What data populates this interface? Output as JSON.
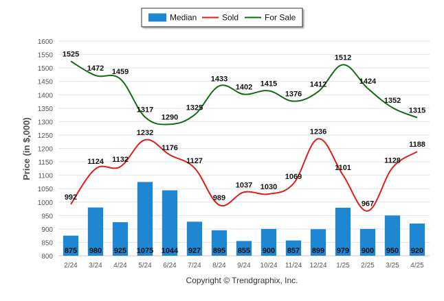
{
  "chart_data": {
    "type": "bar",
    "categories": [
      "2/24",
      "3/24",
      "4/24",
      "5/24",
      "6/24",
      "7/24",
      "8/24",
      "9/24",
      "10/24",
      "11/24",
      "12/24",
      "1/25",
      "2/25",
      "3/25",
      "4/25"
    ],
    "series": [
      {
        "name": "Median",
        "type": "bar",
        "color": "#1f87d2",
        "values": [
          875,
          980,
          925,
          1075,
          1044,
          927,
          895,
          855,
          900,
          857,
          899,
          979,
          900,
          950,
          920
        ]
      },
      {
        "name": "Sold",
        "type": "line",
        "color": "#e01b1b",
        "values": [
          992,
          1124,
          1132,
          1232,
          1176,
          1127,
          989,
          1037,
          1030,
          1069,
          1236,
          1101,
          967,
          1128,
          1188
        ]
      },
      {
        "name": "For Sale",
        "type": "line",
        "color": "#116b11",
        "values": [
          1525,
          1472,
          1459,
          1317,
          1290,
          1325,
          1433,
          1402,
          1415,
          1376,
          1412,
          1512,
          1424,
          1352,
          1315
        ]
      }
    ],
    "ylabel": "Price (in $,000)",
    "yticks": [
      "800",
      "850",
      "900",
      "950",
      "1000",
      "1050",
      "1100",
      "1150",
      "1200",
      "1250",
      "1300",
      "1350",
      "1400",
      "1450",
      "1500",
      "1550",
      "1600"
    ],
    "ylim": [
      800,
      1600
    ],
    "grid": true,
    "legend_position": "top-center"
  },
  "copyright": "Copyright © Trendgraphix, Inc."
}
